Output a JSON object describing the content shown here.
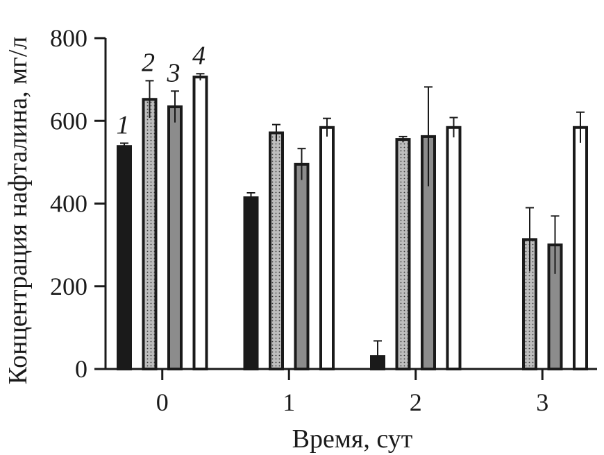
{
  "chart_data": {
    "type": "bar",
    "xlabel": "Время, сут",
    "ylabel": "Концентрация нафталина, мг/л",
    "ylim": [
      0,
      800
    ],
    "yticks": [
      0,
      200,
      400,
      600,
      800
    ],
    "categories": [
      "0",
      "1",
      "2",
      "3"
    ],
    "grid": false,
    "legend": "none",
    "series_labels_position": "above bars of category 0",
    "series": [
      {
        "label": "1",
        "fill": "#1a1a1a",
        "pattern": "solid",
        "values": [
          538,
          414,
          30,
          0
        ],
        "errors": [
          8,
          12,
          38,
          0
        ]
      },
      {
        "label": "2",
        "fill": "#b4b4b4",
        "pattern": "dotted",
        "values": [
          652,
          571,
          555,
          313
        ],
        "errors": [
          45,
          20,
          7,
          77
        ]
      },
      {
        "label": "3",
        "fill": "#8c8c8c",
        "pattern": "solid",
        "values": [
          634,
          495,
          562,
          300
        ],
        "errors": [
          38,
          38,
          120,
          70
        ]
      },
      {
        "label": "4",
        "fill": "#ffffff",
        "pattern": "solid",
        "values": [
          706,
          584,
          584,
          584
        ],
        "errors": [
          8,
          22,
          24,
          37
        ]
      }
    ]
  }
}
